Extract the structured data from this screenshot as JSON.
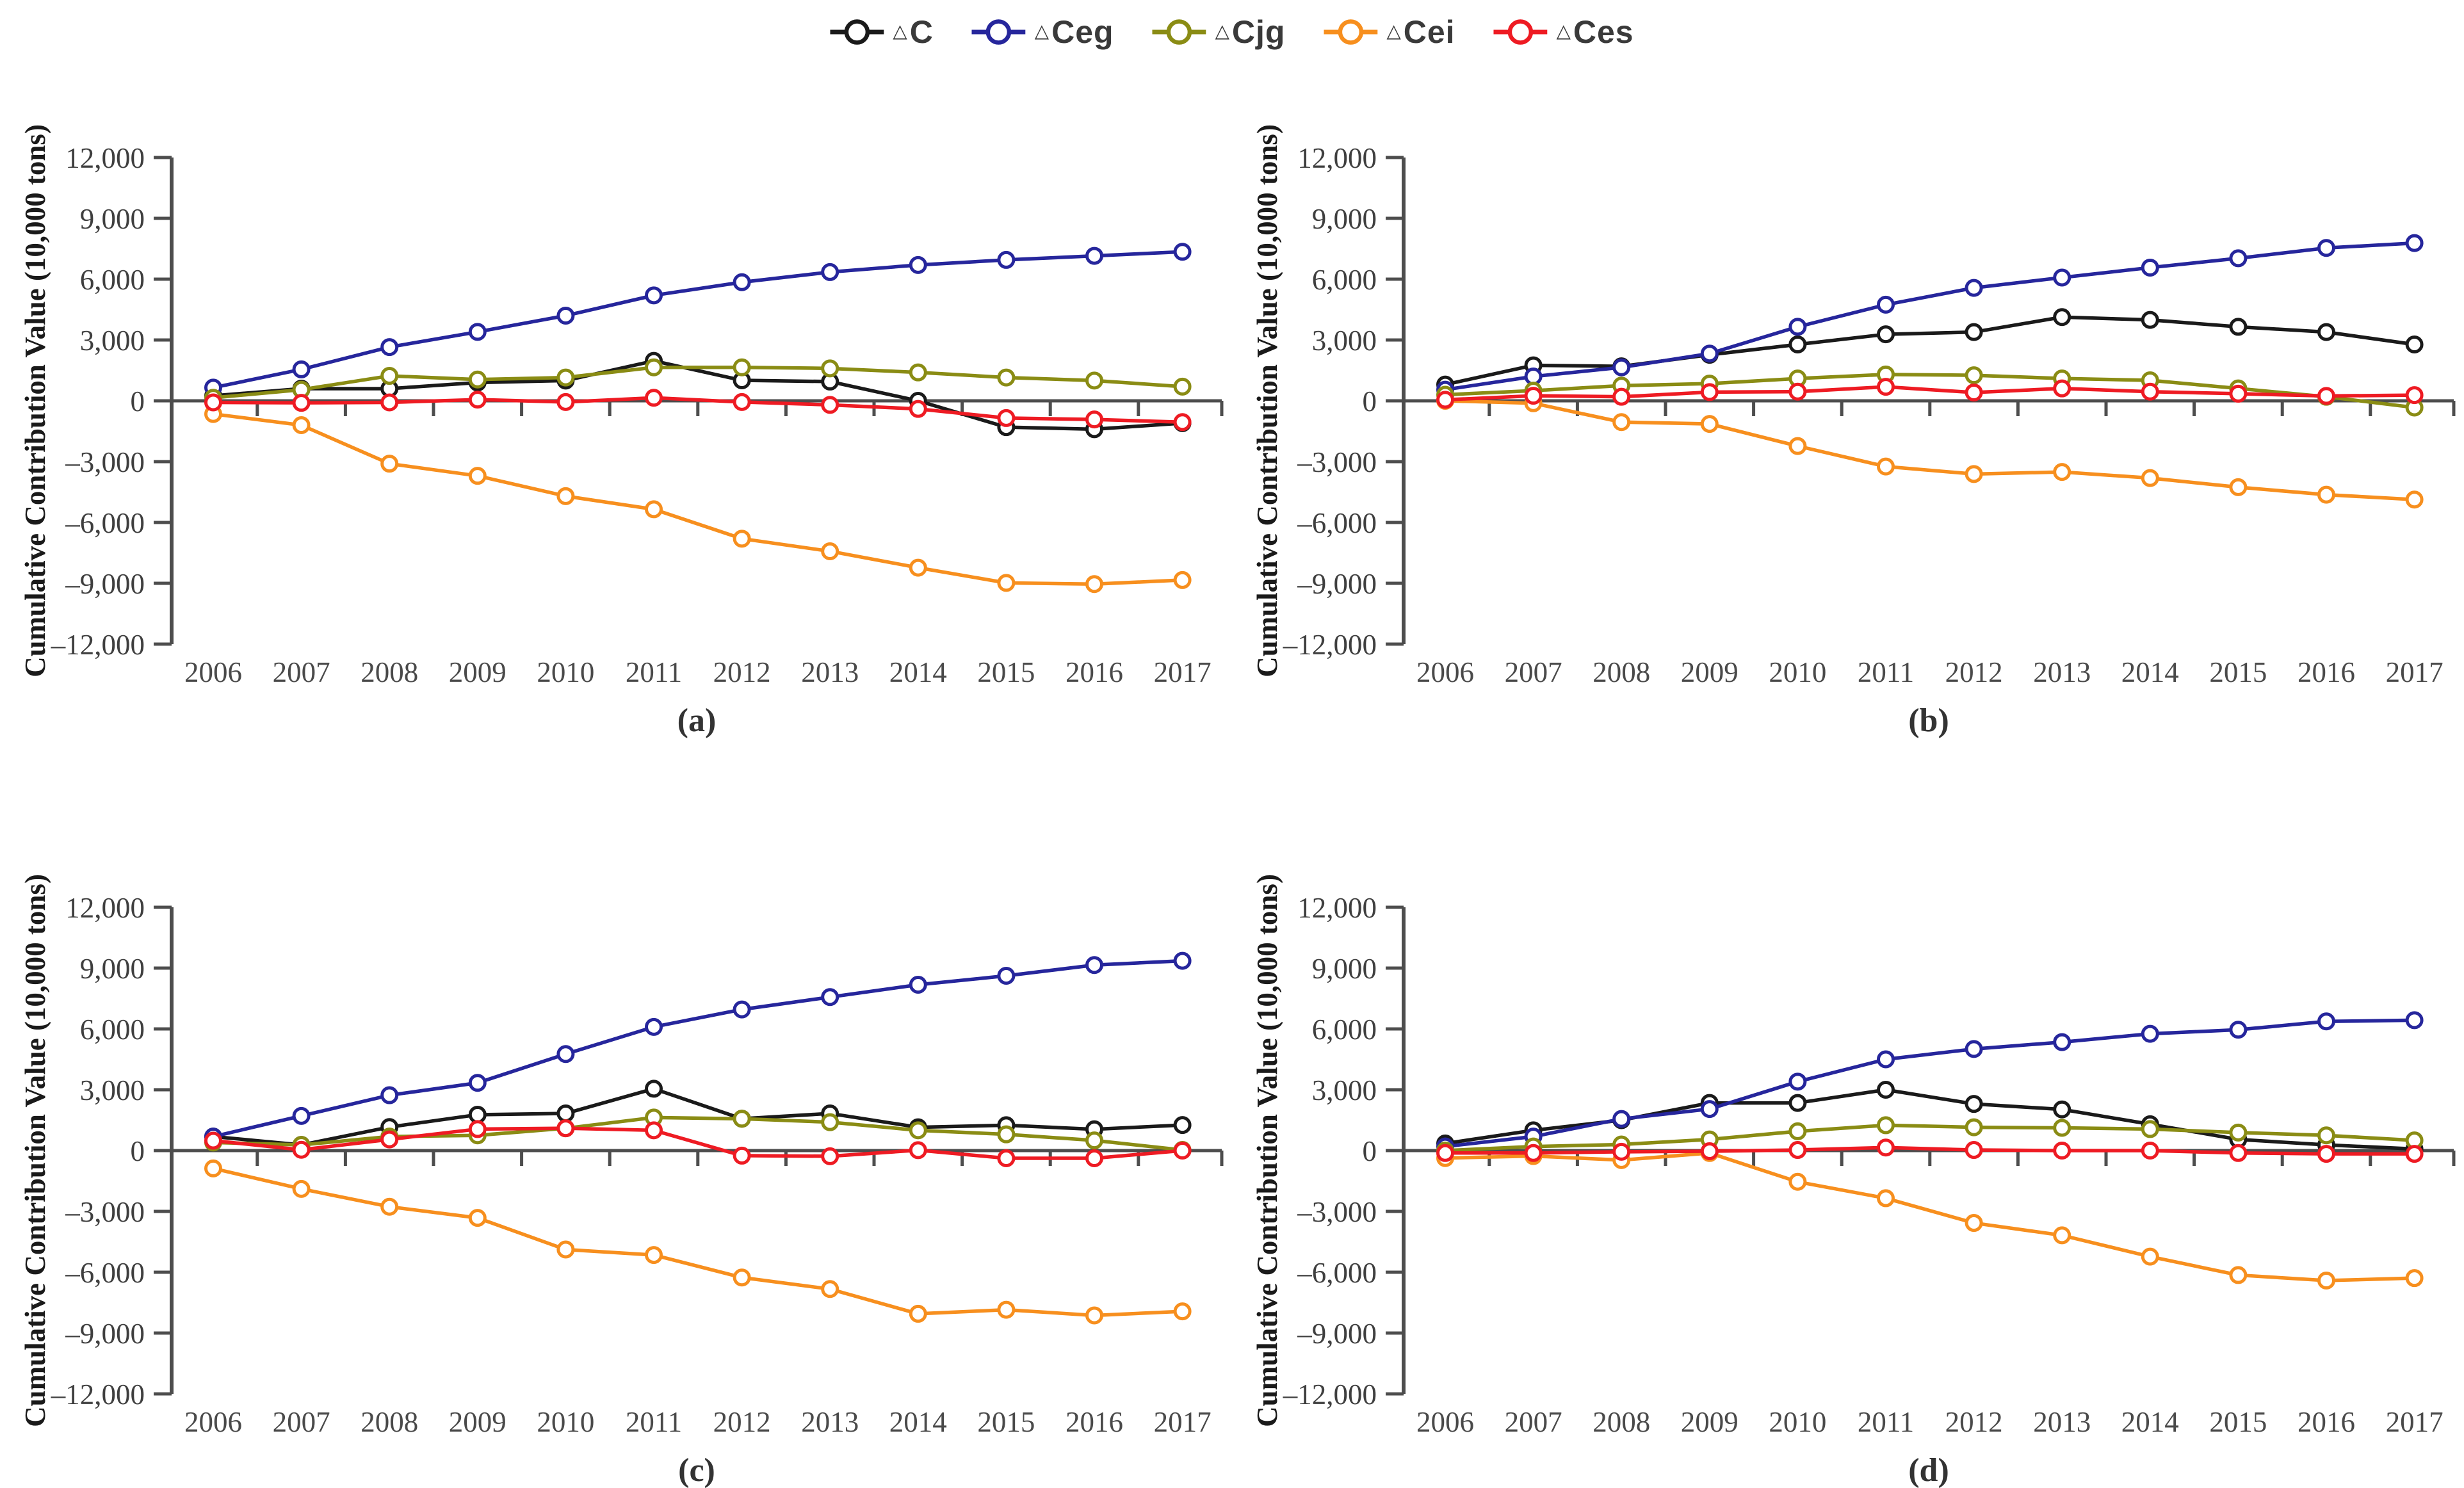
{
  "figure": {
    "y_axis_title": "Cumulative Contribution Value (10,000 tons)",
    "y_tick_values": [
      12000,
      9000,
      6000,
      3000,
      0,
      -3000,
      -6000,
      -9000,
      -12000
    ],
    "y_tick_labels": [
      "12,000",
      "9,000",
      "6,000",
      "3,000",
      "0",
      "-3,000",
      "-6,000",
      "-9,000",
      "-12,000"
    ],
    "x_tick_labels": [
      "2006",
      "2007",
      "2008",
      "2009",
      "2010",
      "2011",
      "2012",
      "2013",
      "2014",
      "2015",
      "2016",
      "2017"
    ],
    "ylim": [
      -12000,
      12000
    ],
    "grid": "off",
    "legend_position": "top-center"
  },
  "colors": {
    "dC": "#1a1a1a",
    "dCeg": "#26269c",
    "dCjg": "#8a8c14",
    "dCei": "#f78f1e",
    "dCes": "#ee1b23",
    "axis": "#4d4d4d"
  },
  "legend": {
    "items": [
      {
        "key": "dC",
        "delta": "△",
        "text": "C"
      },
      {
        "key": "dCeg",
        "delta": "△",
        "text": "Ceg"
      },
      {
        "key": "dCjg",
        "delta": "△",
        "text": "Cjg"
      },
      {
        "key": "dCei",
        "delta": "△",
        "text": "Cei"
      },
      {
        "key": "dCes",
        "delta": "△",
        "text": "Ces"
      }
    ]
  },
  "chart_data": [
    {
      "panel": "a",
      "caption": "(a)",
      "type": "line",
      "x": [
        2006,
        2007,
        2008,
        2009,
        2010,
        2011,
        2012,
        2013,
        2014,
        2015,
        2016,
        2017
      ],
      "series": [
        {
          "name": "△C",
          "color": "dC",
          "values": [
            250,
            600,
            600,
            900,
            1000,
            1970,
            1010,
            950,
            0,
            -1300,
            -1400,
            -1100
          ]
        },
        {
          "name": "△Ceg",
          "color": "dCeg",
          "values": [
            650,
            1550,
            2650,
            3400,
            4200,
            5200,
            5850,
            6350,
            6700,
            6950,
            7150,
            7350
          ]
        },
        {
          "name": "△Cjg",
          "color": "dCjg",
          "values": [
            150,
            550,
            1230,
            1050,
            1150,
            1650,
            1650,
            1600,
            1400,
            1150,
            1000,
            700
          ]
        },
        {
          "name": "△Cei",
          "color": "dCei",
          "values": [
            -650,
            -1200,
            -3100,
            -3700,
            -4700,
            -5350,
            -6800,
            -7420,
            -8230,
            -8980,
            -9040,
            -8840
          ]
        },
        {
          "name": "△Ces",
          "color": "dCes",
          "values": [
            -80,
            -100,
            -80,
            60,
            -60,
            150,
            -60,
            -200,
            -400,
            -850,
            -920,
            -1050
          ]
        }
      ]
    },
    {
      "panel": "b",
      "caption": "(b)",
      "type": "line",
      "x": [
        2006,
        2007,
        2008,
        2009,
        2010,
        2011,
        2012,
        2013,
        2014,
        2015,
        2016,
        2017
      ],
      "series": [
        {
          "name": "△C",
          "color": "dC",
          "values": [
            800,
            1750,
            1700,
            2270,
            2780,
            3280,
            3390,
            4130,
            3990,
            3650,
            3390,
            2780
          ]
        },
        {
          "name": "△Ceg",
          "color": "dCeg",
          "values": [
            550,
            1200,
            1650,
            2330,
            3650,
            4740,
            5570,
            6080,
            6570,
            7030,
            7540,
            7780
          ]
        },
        {
          "name": "△Cjg",
          "color": "dCjg",
          "values": [
            300,
            500,
            750,
            850,
            1100,
            1300,
            1260,
            1100,
            1010,
            610,
            200,
            -330
          ]
        },
        {
          "name": "△Cei",
          "color": "dCei",
          "values": [
            0,
            -120,
            -1050,
            -1140,
            -2230,
            -3240,
            -3610,
            -3510,
            -3810,
            -4260,
            -4630,
            -4870
          ]
        },
        {
          "name": "△Ces",
          "color": "dCes",
          "values": [
            50,
            250,
            200,
            430,
            450,
            690,
            410,
            610,
            450,
            350,
            240,
            280
          ]
        }
      ]
    },
    {
      "panel": "c",
      "caption": "(c)",
      "type": "line",
      "x": [
        2006,
        2007,
        2008,
        2009,
        2010,
        2011,
        2012,
        2013,
        2014,
        2015,
        2016,
        2017
      ],
      "series": [
        {
          "name": "△C",
          "color": "dC",
          "values": [
            690,
            280,
            1160,
            1770,
            1830,
            3050,
            1570,
            1830,
            1150,
            1250,
            1050,
            1260
          ]
        },
        {
          "name": "△Ceg",
          "color": "dCeg",
          "values": [
            690,
            1710,
            2730,
            3340,
            4760,
            6100,
            6960,
            7570,
            8180,
            8620,
            9150,
            9360
          ]
        },
        {
          "name": "△Cjg",
          "color": "dCjg",
          "values": [
            400,
            280,
            690,
            750,
            1100,
            1630,
            1570,
            1400,
            1000,
            800,
            500,
            30
          ]
        },
        {
          "name": "△Cei",
          "color": "dCei",
          "values": [
            -880,
            -1890,
            -2770,
            -3320,
            -4880,
            -5150,
            -6260,
            -6830,
            -8050,
            -7850,
            -8130,
            -7930
          ]
        },
        {
          "name": "△Ces",
          "color": "dCes",
          "values": [
            490,
            40,
            550,
            1060,
            1100,
            1000,
            -250,
            -280,
            20,
            -380,
            -380,
            0
          ]
        }
      ]
    },
    {
      "panel": "d",
      "caption": "(d)",
      "type": "line",
      "x": [
        2006,
        2007,
        2008,
        2009,
        2010,
        2011,
        2012,
        2013,
        2014,
        2015,
        2016,
        2017
      ],
      "series": [
        {
          "name": "△C",
          "color": "dC",
          "values": [
            350,
            1000,
            1500,
            2350,
            2350,
            3000,
            2300,
            2030,
            1300,
            550,
            280,
            80
          ]
        },
        {
          "name": "△Ceg",
          "color": "dCeg",
          "values": [
            200,
            690,
            1560,
            2050,
            3400,
            4500,
            5010,
            5350,
            5760,
            5960,
            6370,
            6430
          ]
        },
        {
          "name": "△Cjg",
          "color": "dCjg",
          "values": [
            0,
            200,
            300,
            550,
            950,
            1250,
            1150,
            1120,
            1060,
            890,
            750,
            500
          ]
        },
        {
          "name": "△Cei",
          "color": "dCei",
          "values": [
            -370,
            -270,
            -470,
            -120,
            -1540,
            -2350,
            -3570,
            -4180,
            -5230,
            -6140,
            -6410,
            -6290
          ]
        },
        {
          "name": "△Ces",
          "color": "dCes",
          "values": [
            -120,
            -120,
            -60,
            -30,
            30,
            150,
            30,
            0,
            0,
            -120,
            -160,
            -160
          ]
        }
      ]
    }
  ]
}
